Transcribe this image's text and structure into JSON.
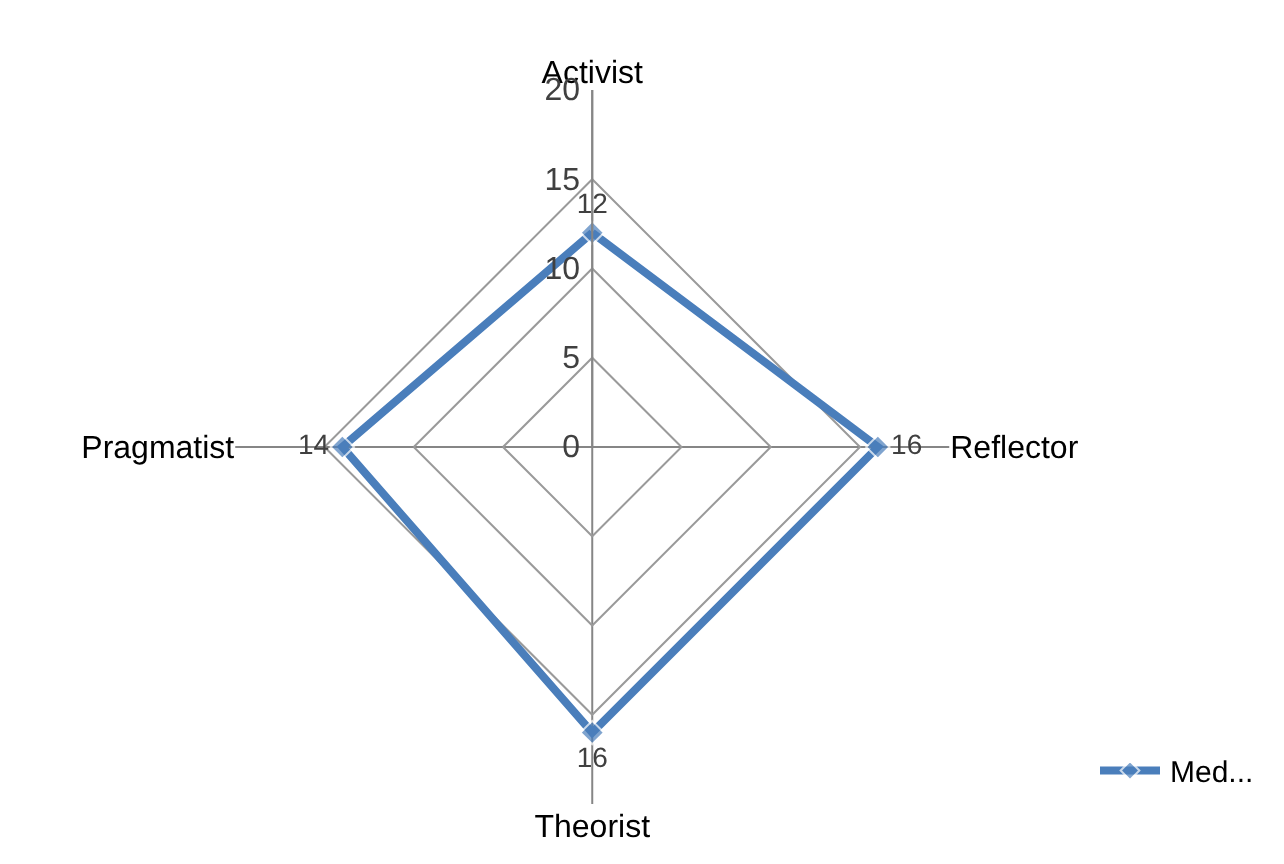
{
  "chart_data": {
    "type": "radar",
    "categories": [
      "Activist",
      "Reflector",
      "Theorist",
      "Pragmatist"
    ],
    "series": [
      {
        "name": "Med...",
        "color": "#4a7ebb",
        "values": [
          12,
          16,
          16,
          14
        ]
      }
    ],
    "ylim": [
      0,
      20
    ],
    "yticks": [
      0,
      5,
      10,
      15,
      20
    ],
    "grid": true,
    "legend": "bottom right",
    "marker": "diamond",
    "line_style": "solid",
    "data_labels": true
  }
}
